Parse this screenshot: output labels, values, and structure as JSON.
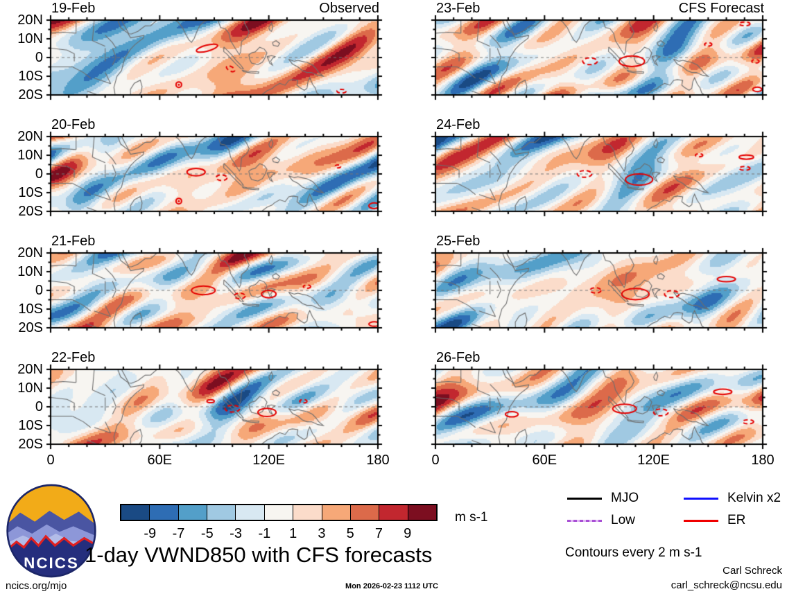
{
  "figure": {
    "title": "1-day VWND850 with CFS forecasts",
    "units_label": "m s-1",
    "contours_note": "Contours every 2 m s-1"
  },
  "panels": [
    {
      "date": "19-Feb",
      "header": "Observed"
    },
    {
      "date": "20-Feb"
    },
    {
      "date": "21-Feb"
    },
    {
      "date": "22-Feb"
    },
    {
      "date": "23-Feb",
      "header": "CFS Forecast"
    },
    {
      "date": "24-Feb"
    },
    {
      "date": "25-Feb"
    },
    {
      "date": "26-Feb"
    }
  ],
  "axes": {
    "y_ticks": [
      "20N",
      "10N",
      "0",
      "10S",
      "20S"
    ],
    "x_ticks": [
      "0",
      "60E",
      "120E",
      "180"
    ]
  },
  "colorbar": {
    "tick_labels": [
      "-9",
      "-7",
      "-5",
      "-3",
      "-1",
      "1",
      "3",
      "5",
      "7",
      "9"
    ],
    "colors": [
      "#1a4a84",
      "#2e6db4",
      "#539fc9",
      "#a0c9e2",
      "#d8e8f2",
      "#f7f5f1",
      "#fbdcca",
      "#f6a878",
      "#dc6a4a",
      "#c2272f",
      "#7c0e20"
    ]
  },
  "legend": {
    "items": [
      {
        "label": "MJO",
        "color": "#000000"
      },
      {
        "label": "Kelvin x2",
        "color": "#1010ff"
      },
      {
        "label": "Low",
        "color": "#a84fd4"
      },
      {
        "label": "ER",
        "color": "#f00000"
      }
    ]
  },
  "logo": {
    "label": "NCICS"
  },
  "footer": {
    "site": "ncics.org/mjo",
    "timestamp": "Mon 2026-02-23 1112 UTC",
    "credit_name": "Carl Schreck",
    "credit_email": "carl_schreck@ncsu.edu"
  },
  "chart_data": {
    "type": "heatmap",
    "title": "1-day VWND850 with CFS forecasts",
    "variable": "VWND850",
    "units": "m s-1",
    "contour_interval_note": "Contours every 2 m s-1",
    "columns": [
      {
        "header": "Observed",
        "panel_dates": [
          "19-Feb",
          "20-Feb",
          "21-Feb",
          "22-Feb"
        ]
      },
      {
        "header": "CFS Forecast",
        "panel_dates": [
          "23-Feb",
          "24-Feb",
          "25-Feb",
          "26-Feb"
        ]
      }
    ],
    "x_axis": {
      "label": "longitude",
      "range_deg_east": [
        0,
        180
      ],
      "tick_labels": [
        "0",
        "60E",
        "120E",
        "180"
      ],
      "minor_tick_deg": 10
    },
    "y_axis": {
      "label": "latitude",
      "range_deg": [
        -20,
        20
      ],
      "tick_labels": [
        "20N",
        "10N",
        "0",
        "10S",
        "20S"
      ],
      "minor_tick_deg": 5
    },
    "fill_levels": [
      -9,
      -7,
      -5,
      -3,
      -1,
      1,
      3,
      5,
      7,
      9
    ],
    "fill_colors": [
      "#1a4a84",
      "#2e6db4",
      "#539fc9",
      "#a0c9e2",
      "#d8e8f2",
      "#f7f5f1",
      "#fbdcca",
      "#f6a878",
      "#dc6a4a",
      "#c2272f",
      "#7c0e20"
    ],
    "overlay_contours": [
      {
        "name": "MJO",
        "color": "#000000"
      },
      {
        "name": "Kelvin x2",
        "color": "#1010ff"
      },
      {
        "name": "Low",
        "color": "#a84fd4"
      },
      {
        "name": "ER",
        "color": "#f00000"
      }
    ],
    "legend_position": "bottom-right",
    "equator_line": "dashed",
    "grid": false
  }
}
